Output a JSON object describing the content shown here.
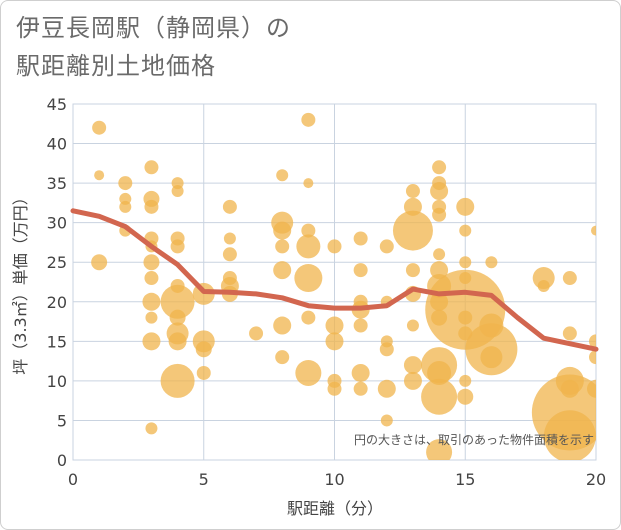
{
  "title_line1": "伊豆長岡駅（静岡県）の",
  "title_line2": "駅距離別土地価格",
  "chart_data": {
    "type": "scatter",
    "title": "伊豆長岡駅（静岡県）の駅距離別土地価格",
    "xlabel": "駅距離（分）",
    "ylabel": "坪（3.3㎡）単価（万円）",
    "xlim": [
      0,
      20
    ],
    "ylim": [
      0,
      45
    ],
    "xticks": [
      0,
      5,
      10,
      15,
      20
    ],
    "yticks": [
      0,
      5,
      10,
      15,
      20,
      25,
      30,
      35,
      40,
      45
    ],
    "annotation": "円の大きさは、取引のあった物件面積を示す",
    "colors": {
      "bubble": "#f0b44c",
      "trend": "#d2664f",
      "grid": "#c9d3e0"
    },
    "points": [
      {
        "x": 1,
        "y": 42,
        "s": 7
      },
      {
        "x": 1,
        "y": 36,
        "s": 5
      },
      {
        "x": 1,
        "y": 25,
        "s": 8
      },
      {
        "x": 2,
        "y": 35,
        "s": 7
      },
      {
        "x": 2,
        "y": 33,
        "s": 6
      },
      {
        "x": 2,
        "y": 32,
        "s": 6
      },
      {
        "x": 2,
        "y": 29,
        "s": 6
      },
      {
        "x": 3,
        "y": 37,
        "s": 7
      },
      {
        "x": 3,
        "y": 33,
        "s": 8
      },
      {
        "x": 3,
        "y": 32,
        "s": 7
      },
      {
        "x": 3,
        "y": 28,
        "s": 7
      },
      {
        "x": 3,
        "y": 27,
        "s": 6
      },
      {
        "x": 3,
        "y": 25,
        "s": 8
      },
      {
        "x": 3,
        "y": 23,
        "s": 7
      },
      {
        "x": 3,
        "y": 20,
        "s": 9
      },
      {
        "x": 3,
        "y": 18,
        "s": 6
      },
      {
        "x": 3,
        "y": 15,
        "s": 9
      },
      {
        "x": 3,
        "y": 4,
        "s": 6
      },
      {
        "x": 4,
        "y": 35,
        "s": 6
      },
      {
        "x": 4,
        "y": 34,
        "s": 6
      },
      {
        "x": 4,
        "y": 28,
        "s": 7
      },
      {
        "x": 4,
        "y": 27,
        "s": 7
      },
      {
        "x": 4,
        "y": 22,
        "s": 7
      },
      {
        "x": 4,
        "y": 20,
        "s": 17
      },
      {
        "x": 4,
        "y": 18,
        "s": 8
      },
      {
        "x": 4,
        "y": 16,
        "s": 11
      },
      {
        "x": 4,
        "y": 15,
        "s": 9
      },
      {
        "x": 4,
        "y": 10,
        "s": 17
      },
      {
        "x": 5,
        "y": 21,
        "s": 11
      },
      {
        "x": 5,
        "y": 15,
        "s": 11
      },
      {
        "x": 5,
        "y": 14,
        "s": 8
      },
      {
        "x": 5,
        "y": 11,
        "s": 7
      },
      {
        "x": 6,
        "y": 32,
        "s": 7
      },
      {
        "x": 6,
        "y": 28,
        "s": 6
      },
      {
        "x": 6,
        "y": 26,
        "s": 7
      },
      {
        "x": 6,
        "y": 23,
        "s": 7
      },
      {
        "x": 6,
        "y": 22,
        "s": 9
      },
      {
        "x": 6,
        "y": 21,
        "s": 8
      },
      {
        "x": 7,
        "y": 16,
        "s": 7
      },
      {
        "x": 8,
        "y": 36,
        "s": 6
      },
      {
        "x": 8,
        "y": 30,
        "s": 11
      },
      {
        "x": 8,
        "y": 29,
        "s": 9
      },
      {
        "x": 8,
        "y": 27,
        "s": 7
      },
      {
        "x": 8,
        "y": 24,
        "s": 9
      },
      {
        "x": 8,
        "y": 17,
        "s": 9
      },
      {
        "x": 8,
        "y": 13,
        "s": 7
      },
      {
        "x": 9,
        "y": 43,
        "s": 7
      },
      {
        "x": 9,
        "y": 35,
        "s": 5
      },
      {
        "x": 9,
        "y": 29,
        "s": 7
      },
      {
        "x": 9,
        "y": 27,
        "s": 12
      },
      {
        "x": 9,
        "y": 23,
        "s": 14
      },
      {
        "x": 9,
        "y": 18,
        "s": 7
      },
      {
        "x": 9,
        "y": 11,
        "s": 13
      },
      {
        "x": 10,
        "y": 27,
        "s": 7
      },
      {
        "x": 10,
        "y": 17,
        "s": 9
      },
      {
        "x": 10,
        "y": 15,
        "s": 9
      },
      {
        "x": 10,
        "y": 10,
        "s": 7
      },
      {
        "x": 10,
        "y": 9,
        "s": 7
      },
      {
        "x": 11,
        "y": 28,
        "s": 7
      },
      {
        "x": 11,
        "y": 24,
        "s": 7
      },
      {
        "x": 11,
        "y": 20,
        "s": 7
      },
      {
        "x": 11,
        "y": 19,
        "s": 9
      },
      {
        "x": 11,
        "y": 17,
        "s": 7
      },
      {
        "x": 11,
        "y": 11,
        "s": 9
      },
      {
        "x": 11,
        "y": 9,
        "s": 7
      },
      {
        "x": 12,
        "y": 27,
        "s": 7
      },
      {
        "x": 12,
        "y": 20,
        "s": 6
      },
      {
        "x": 12,
        "y": 15,
        "s": 6
      },
      {
        "x": 12,
        "y": 14,
        "s": 7
      },
      {
        "x": 12,
        "y": 9,
        "s": 9
      },
      {
        "x": 12,
        "y": 5,
        "s": 6
      },
      {
        "x": 13,
        "y": 34,
        "s": 7
      },
      {
        "x": 13,
        "y": 32,
        "s": 9
      },
      {
        "x": 13,
        "y": 29,
        "s": 20
      },
      {
        "x": 13,
        "y": 24,
        "s": 7
      },
      {
        "x": 13,
        "y": 21,
        "s": 8
      },
      {
        "x": 13,
        "y": 17,
        "s": 6
      },
      {
        "x": 13,
        "y": 12,
        "s": 9
      },
      {
        "x": 13,
        "y": 10,
        "s": 9
      },
      {
        "x": 14,
        "y": 37,
        "s": 7
      },
      {
        "x": 14,
        "y": 35,
        "s": 7
      },
      {
        "x": 14,
        "y": 34,
        "s": 9
      },
      {
        "x": 14,
        "y": 32,
        "s": 7
      },
      {
        "x": 14,
        "y": 31,
        "s": 7
      },
      {
        "x": 14,
        "y": 26,
        "s": 6
      },
      {
        "x": 14,
        "y": 24,
        "s": 9
      },
      {
        "x": 14,
        "y": 22,
        "s": 12
      },
      {
        "x": 14,
        "y": 20,
        "s": 9
      },
      {
        "x": 14,
        "y": 18,
        "s": 8
      },
      {
        "x": 14,
        "y": 12,
        "s": 18
      },
      {
        "x": 14,
        "y": 11,
        "s": 12
      },
      {
        "x": 14,
        "y": 8,
        "s": 18
      },
      {
        "x": 14,
        "y": 1,
        "s": 13
      },
      {
        "x": 15,
        "y": 32,
        "s": 9
      },
      {
        "x": 15,
        "y": 29,
        "s": 6
      },
      {
        "x": 15,
        "y": 25,
        "s": 6
      },
      {
        "x": 15,
        "y": 23,
        "s": 6
      },
      {
        "x": 15,
        "y": 19,
        "s": 40
      },
      {
        "x": 15,
        "y": 18,
        "s": 7
      },
      {
        "x": 15,
        "y": 16,
        "s": 7
      },
      {
        "x": 15,
        "y": 10,
        "s": 6
      },
      {
        "x": 15,
        "y": 8,
        "s": 8
      },
      {
        "x": 16,
        "y": 25,
        "s": 6
      },
      {
        "x": 16,
        "y": 17,
        "s": 12
      },
      {
        "x": 16,
        "y": 14,
        "s": 26
      },
      {
        "x": 16,
        "y": 13,
        "s": 11
      },
      {
        "x": 18,
        "y": 23,
        "s": 11
      },
      {
        "x": 18,
        "y": 22,
        "s": 6
      },
      {
        "x": 19,
        "y": 23,
        "s": 7
      },
      {
        "x": 19,
        "y": 16,
        "s": 7
      },
      {
        "x": 19,
        "y": 10,
        "s": 14
      },
      {
        "x": 19,
        "y": 9,
        "s": 9
      },
      {
        "x": 19,
        "y": 6,
        "s": 38
      },
      {
        "x": 19,
        "y": 3,
        "s": 26
      },
      {
        "x": 20,
        "y": 29,
        "s": 5
      },
      {
        "x": 20,
        "y": 15,
        "s": 7
      },
      {
        "x": 20,
        "y": 13,
        "s": 7
      },
      {
        "x": 20,
        "y": 9,
        "s": 9
      }
    ],
    "trend": {
      "x": [
        0,
        1,
        2,
        3,
        4,
        5,
        6,
        7,
        8,
        9,
        10,
        11,
        12,
        13,
        14,
        15,
        16,
        17,
        18,
        19,
        20
      ],
      "y": [
        31.5,
        30.8,
        29.5,
        27,
        24.7,
        21.3,
        21.2,
        21,
        20.5,
        19.5,
        19.2,
        19.2,
        19.5,
        21.6,
        21.0,
        21.2,
        20.8,
        18,
        15.4,
        14.7,
        14
      ]
    }
  }
}
